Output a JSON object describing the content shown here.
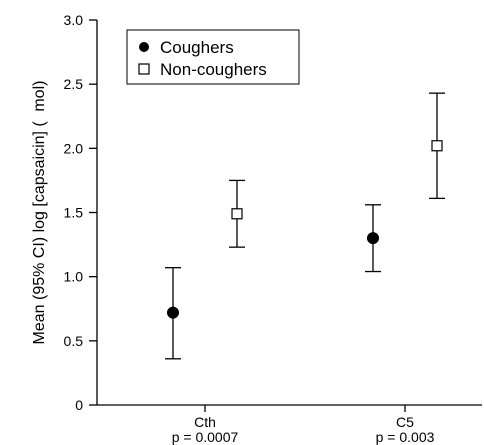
{
  "chart_data": {
    "type": "scatter",
    "ylabel": "Mean (95% CI) log [capsaicin] (   mol)",
    "ylim": [
      0,
      3.0
    ],
    "yticks": [
      0,
      0.5,
      1.0,
      1.5,
      2.0,
      2.5,
      3.0
    ],
    "ytick_labels": [
      "0",
      "0.5",
      "1.0",
      "1.5",
      "2.0",
      "2.5",
      "3.0"
    ],
    "categories": [
      "Cth",
      "C5"
    ],
    "category_sublabels": [
      "p = 0.0007",
      "p = 0.003"
    ],
    "legend": {
      "placement": "top-left",
      "entries": [
        {
          "name": "Coughers",
          "marker": "filled-circle"
        },
        {
          "name": "Non-coughers",
          "marker": "open-square"
        }
      ]
    },
    "series": [
      {
        "name": "Coughers",
        "marker": "filled-circle",
        "color": "#000000",
        "points": [
          {
            "category": "Cth",
            "mean": 0.72,
            "lower": 0.36,
            "upper": 1.07
          },
          {
            "category": "C5",
            "mean": 1.3,
            "lower": 1.04,
            "upper": 1.56
          }
        ]
      },
      {
        "name": "Non-coughers",
        "marker": "open-square",
        "color": "#000000",
        "points": [
          {
            "category": "Cth",
            "mean": 1.49,
            "lower": 1.23,
            "upper": 1.75
          },
          {
            "category": "C5",
            "mean": 2.02,
            "lower": 1.61,
            "upper": 2.43
          }
        ]
      }
    ],
    "grid": false
  }
}
